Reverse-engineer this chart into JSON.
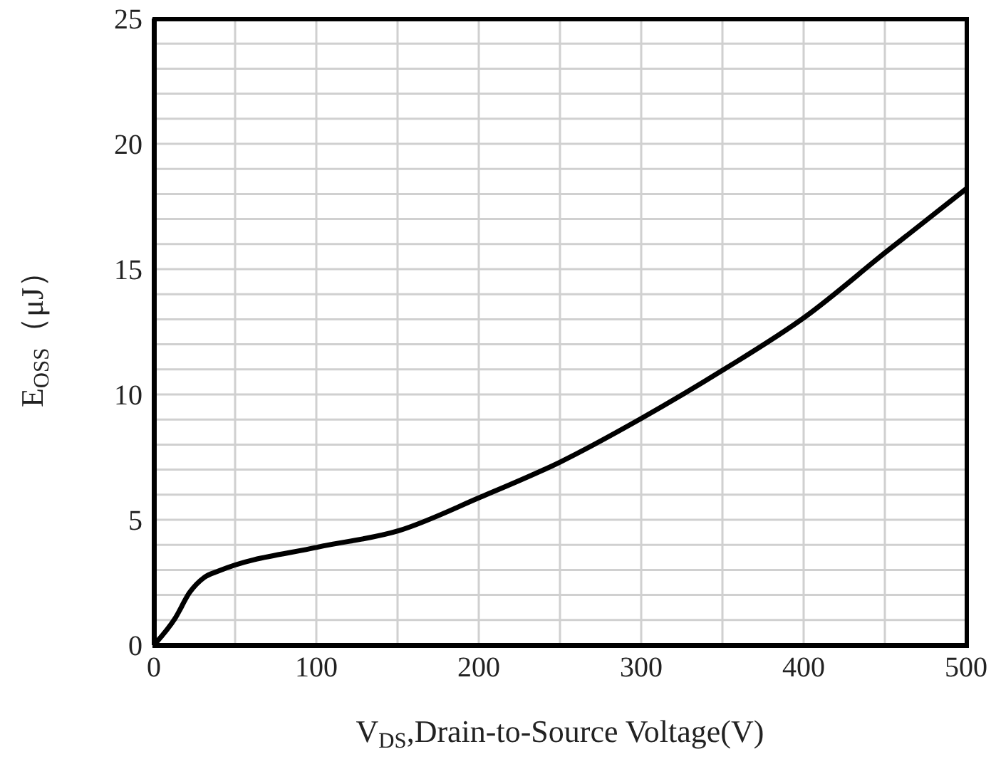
{
  "chart_data": {
    "type": "line",
    "xlabel": "V$_{DS}$,Drain-to-Source Voltage(V)",
    "ylabel": "E$_{OSS}$（μJ）",
    "series": [
      {
        "color": "#000000",
        "x": [
          0,
          13,
          22,
          31,
          40,
          101,
          151,
          201,
          250,
          300,
          351,
          401,
          451,
          500
        ],
        "values": [
          0,
          1.06,
          2.1,
          2.7,
          2.96,
          3.91,
          4.57,
          5.9,
          7.3,
          9.04,
          11.0,
          13.1,
          15.7,
          18.2
        ]
      }
    ],
    "xlim": [
      0,
      500
    ],
    "xticks": [
      0,
      {
        "value": 50,
        "label": null
      },
      100,
      {
        "value": 150,
        "label": null
      },
      200,
      {
        "value": 250,
        "label": null
      },
      300,
      {
        "value": 350,
        "label": null
      },
      400,
      {
        "value": 450,
        "label": null
      },
      500
    ],
    "ylim": [
      0,
      25
    ],
    "yticks": [
      0,
      {
        "value": 1,
        "label": null
      },
      {
        "value": 2,
        "label": null
      },
      {
        "value": 3,
        "label": null
      },
      {
        "value": 4,
        "label": null
      },
      5,
      {
        "value": 6,
        "label": null
      },
      {
        "value": 7,
        "label": null
      },
      {
        "value": 8,
        "label": null
      },
      {
        "value": 9,
        "label": null
      },
      10,
      {
        "value": 11,
        "label": null
      },
      {
        "value": 12,
        "label": null
      },
      {
        "value": 13,
        "label": null
      },
      {
        "value": 14,
        "label": null
      },
      15,
      {
        "value": 16,
        "label": null
      },
      {
        "value": 17,
        "label": null
      },
      {
        "value": 18,
        "label": null
      },
      {
        "value": 19,
        "label": null
      },
      20,
      {
        "value": 21,
        "label": null
      },
      {
        "value": 22,
        "label": null
      },
      {
        "value": 23,
        "label": null
      },
      {
        "value": 24,
        "label": null
      },
      25
    ],
    "grid": true,
    "marker": "none",
    "line_style": "solid",
    "legend": false
  }
}
